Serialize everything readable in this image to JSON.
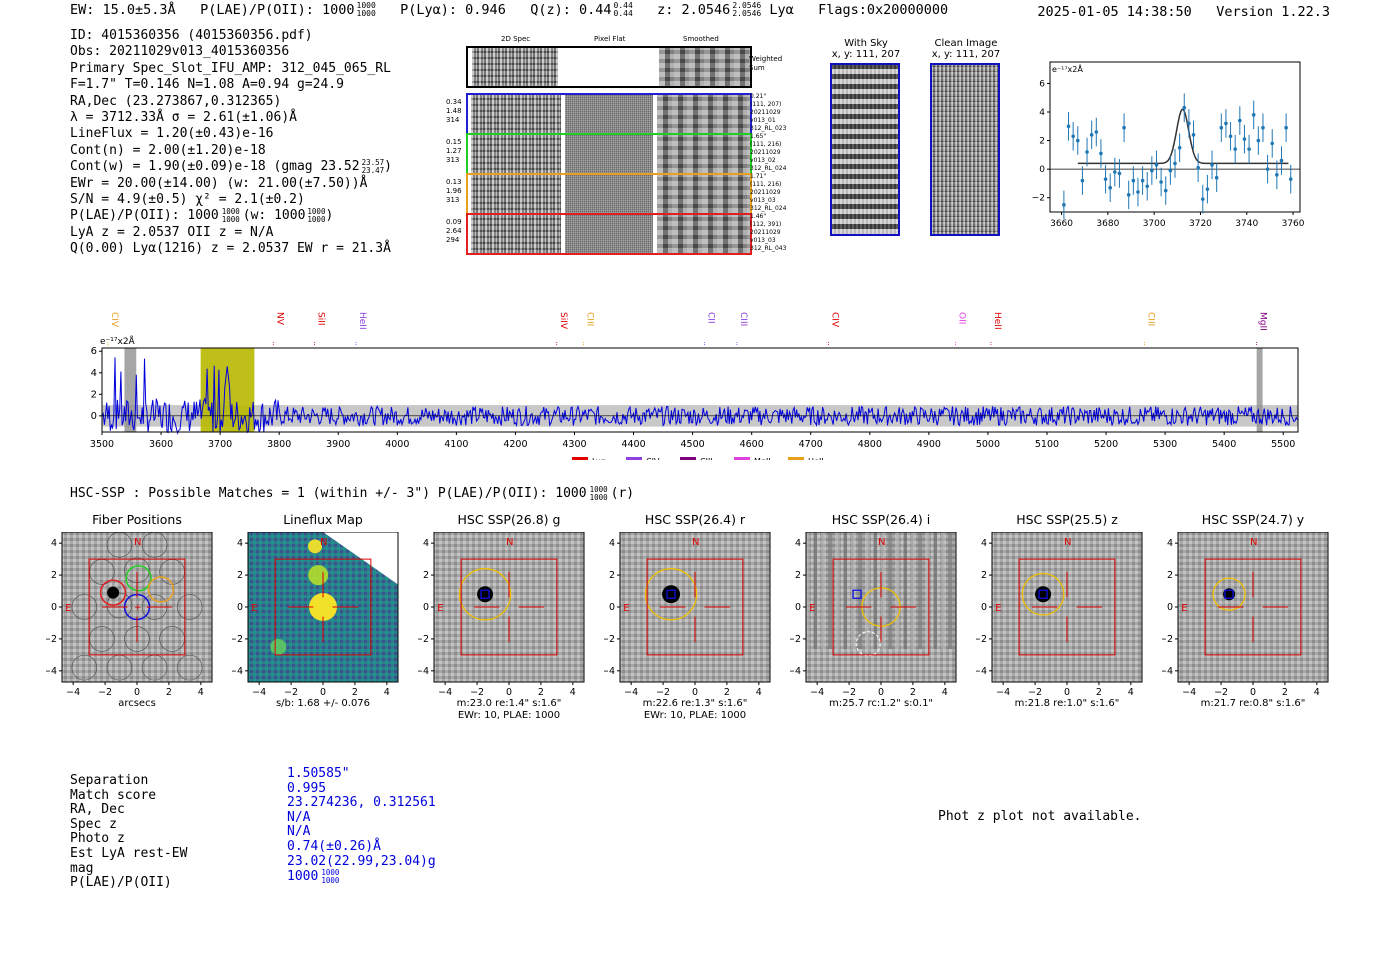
{
  "header": {
    "ew_label": "EW: 15.0±5.3Å",
    "plae_label": "P(LAE)/P(OII): 1000",
    "plae_hi": "1000",
    "plae_lo": "1000",
    "plya_label": "P(Lyα): 0.946",
    "qz_label": "Q(z): 0.44",
    "qz_hi": "0.44",
    "qz_lo": "0.44",
    "z_label": "z: 2.0546",
    "z_hi": "2.0546",
    "z_lo": "2.0546",
    "z_line": "Lyα",
    "flags": "Flags:0x20000000",
    "timestamp": "2025-01-05 14:38:50",
    "version": "Version 1.22.3"
  },
  "info": {
    "id": "ID: 4015360356 (4015360356.pdf)",
    "obs": "Obs: 20211029v013_4015360356",
    "primary": "Primary Spec_Slot_IFU_AMP: 312_045_065_RL",
    "fit": "F=1.7\"  T=0.146  N=1.08  A=0.94  g=24.9",
    "radec": "RA,Dec (23.273867,0.312365)",
    "lambda": "λ = 3712.33Å  σ = 2.61(±1.06)Å",
    "lineflux": "LineFlux = 1.20(±0.43)e-16",
    "contn": "Cont(n) = 2.00(±1.20)e-18",
    "contw": "Cont(w) = 1.90(±0.09)e-18 (gmag 23.52",
    "contw_hi": "23.57",
    "contw_lo": "23.47",
    "contw_end": ")",
    "ewr": "EWr = 20.00(±14.00) (w: 21.00(±7.50))Å",
    "sn": "S/N = 4.9(±0.5)  χ² = 2.1(±0.2)",
    "plae": "P(LAE)/P(OII): 1000",
    "plae_hi": "1000",
    "plae_lo": "1000",
    "plae_w": "(w: 1000",
    "plae_w_hi": "1000",
    "plae_w_lo": "1000",
    "plae_w_end": ")",
    "lyaz": "LyA z = 2.0537   OII z = N/A",
    "q": "Q(0.00) Lyα(1216) z = 2.0537  EW r = 21.3Å"
  },
  "fibers": {
    "col_2d": "2D Spec",
    "col_flat": "Pixel Flat",
    "col_smooth": "Smoothed",
    "weighted": "Weighted",
    "sum": "Sum",
    "rows": [
      {
        "left1": "0.34",
        "left2": "1.48",
        "left3": "314",
        "r1": "0.21\"",
        "r2": "(111, 207)",
        "r3": "20211029",
        "r4": "v013_01",
        "r5": "312_RL_023",
        "color": "#2020d0"
      },
      {
        "left1": "0.15",
        "left2": "1.27",
        "left3": "313",
        "r1": "1.65\"",
        "r2": "(111, 216)",
        "r3": "20211029",
        "r4": "v013_02",
        "r5": "312_RL_024",
        "color": "#22cc22"
      },
      {
        "left1": "0.13",
        "left2": "1.96",
        "left3": "313",
        "r1": "1.71\"",
        "r2": "(111, 216)",
        "r3": "20211029",
        "r4": "v013_03",
        "r5": "312_RL_024",
        "color": "#e8a020"
      },
      {
        "left1": "0.09",
        "left2": "2.64",
        "left3": "294",
        "r1": "1.46\"",
        "r2": "(112, 391)",
        "r3": "20211029",
        "r4": "v013_03",
        "r5": "312_RL_043",
        "color": "#e02020"
      }
    ]
  },
  "sky_panel": {
    "title": "With Sky",
    "coords": "x, y: 111, 207"
  },
  "clean_panel": {
    "title": "Clean Image",
    "coords": "x, y: 111, 207"
  },
  "zoom_units": "e⁻¹⁷x2Å",
  "full_units": "e⁻¹⁷x2Å",
  "hsc_header": "HSC-SSP : Possible Matches = 1 (within +/- 3\")  P(LAE)/P(OII): 1000",
  "hsc_header_hi": "1000",
  "hsc_header_lo": "1000",
  "hsc_header_end": "(r)",
  "cutouts": [
    {
      "title": "Fiber Positions",
      "cap1": "arcsecs",
      "cap2": ""
    },
    {
      "title": "Lineflux Map",
      "cap1": "s/b: 1.68 +/- 0.076",
      "cap2": ""
    },
    {
      "title": "HSC SSP(26.8) g",
      "cap1": "m:23.0  re:1.4\"  s:1.6\"",
      "cap2": "EWr: 10, PLAE: 1000"
    },
    {
      "title": "HSC SSP(26.4) r",
      "cap1": "m:22.6  re:1.3\"  s:1.6\"",
      "cap2": "EWr: 10, PLAE: 1000"
    },
    {
      "title": "HSC SSP(26.4) i",
      "cap1": "m:25.7 rc:1.2\"  s:0.1\"",
      "cap2": ""
    },
    {
      "title": "HSC SSP(25.5) z",
      "cap1": "m:21.8  re:1.0\"  s:1.6\"",
      "cap2": ""
    },
    {
      "title": "HSC SSP(24.7) y",
      "cap1": "m:21.7  re:0.8\"  s:1.6\"",
      "cap2": ""
    }
  ],
  "cutout_labels": {
    "north": "N",
    "east": "E"
  },
  "match": {
    "labels": [
      "Separation",
      "Match score",
      "RA, Dec",
      "Spec z",
      "Photo z",
      "Est LyA rest-EW",
      "mag",
      "P(LAE)/P(OII)"
    ],
    "values": [
      "1.50585\"",
      "0.995",
      "23.274236, 0.312561",
      "N/A",
      "N/A",
      "0.74(±0.26)Å",
      "23.02(22.99,23.04)g",
      "1000"
    ],
    "plae_hi": "1000",
    "plae_lo": "1000"
  },
  "photz_note": "Phot z plot not available.",
  "colors": {
    "blue": "#0000dd",
    "red": "#e00000",
    "yellow": "#b8b800",
    "gray": "#c8c8c8",
    "zoomline": "#1f77b4"
  },
  "chart_data": [
    {
      "type": "scatter",
      "title": "",
      "xlabel": "",
      "ylabel": "e⁻¹⁷x2Å",
      "xlim": [
        3655,
        3763
      ],
      "ylim": [
        -3,
        7.5
      ],
      "x_ticks": [
        3660,
        3680,
        3700,
        3720,
        3740,
        3760
      ],
      "y_ticks": [
        -2,
        0,
        2,
        4,
        6
      ],
      "x": [
        3661,
        3663,
        3665,
        3667,
        3669,
        3671,
        3673,
        3675,
        3677,
        3679,
        3681,
        3683,
        3685,
        3687,
        3689,
        3691,
        3693,
        3695,
        3697,
        3699,
        3701,
        3703,
        3705,
        3707,
        3709,
        3711,
        3713,
        3715,
        3717,
        3719,
        3721,
        3723,
        3725,
        3727,
        3729,
        3731,
        3733,
        3735,
        3737,
        3739,
        3741,
        3743,
        3745,
        3747,
        3749,
        3751,
        3753,
        3755,
        3757,
        3759
      ],
      "y": [
        -2.5,
        3.0,
        2.3,
        2.0,
        -0.8,
        1.2,
        2.4,
        2.6,
        1.1,
        -0.7,
        -1.3,
        -0.2,
        -0.3,
        2.9,
        -1.8,
        -0.8,
        -1.6,
        -0.8,
        -1.2,
        -0.1,
        0.3,
        -0.9,
        -1.5,
        -0.1,
        0.4,
        1.5,
        4.3,
        3.2,
        2.4,
        0.1,
        -2.1,
        -1.4,
        0.3,
        -0.6,
        2.9,
        3.2,
        2.3,
        1.4,
        3.4,
        2.1,
        1.4,
        3.8,
        2.0,
        2.9,
        0.0,
        1.8,
        -0.4,
        0.6,
        2.9,
        -0.7
      ],
      "errors": 1.0,
      "model": {
        "type": "gaussian",
        "center": 3712.3,
        "sigma": 2.61,
        "amplitude": 3.8,
        "continuum": 0.4,
        "x_range": [
          3667,
          3758
        ]
      }
    },
    {
      "type": "line",
      "title": "",
      "xlabel": "",
      "ylabel": "e⁻¹⁷x2Å",
      "xlim": [
        3500,
        5525
      ],
      "ylim": [
        -1.5,
        6.3
      ],
      "x_ticks": [
        3500,
        3600,
        3700,
        3800,
        3900,
        4000,
        4100,
        4200,
        4300,
        4400,
        4500,
        4600,
        4700,
        4800,
        4900,
        5000,
        5100,
        5200,
        5300,
        5400,
        5500
      ],
      "y_ticks": [
        0,
        2,
        4,
        6
      ],
      "series": [
        {
          "name": "spectrum",
          "color": "#0000dd",
          "noise_amplitude": 0.9,
          "peak": {
            "x": 3712,
            "y": 4.6
          }
        }
      ],
      "error_band": {
        "low": -1.0,
        "high": 1.0
      },
      "highlight_regions": [
        {
          "from": 3538,
          "to": 3558,
          "color": "gray"
        },
        {
          "from": 3667,
          "to": 3758,
          "color": "yellow"
        },
        {
          "from": 5455,
          "to": 5465,
          "color": "gray"
        }
      ],
      "line_markers": [
        {
          "label": "CIV",
          "x": 3510,
          "color": "#e8a020"
        },
        {
          "label": "NV",
          "x": 3790,
          "color": "#e00000"
        },
        {
          "label": "SiII",
          "x": 3860,
          "color": "#e00000"
        },
        {
          "label": "HeII",
          "x": 3930,
          "color": "#9040e0"
        },
        {
          "label": "SiIV",
          "x": 4270,
          "color": "#e00000"
        },
        {
          "label": "CIII",
          "x": 4315,
          "color": "#e8a020"
        },
        {
          "label": "CII",
          "x": 4520,
          "color": "#9040e0"
        },
        {
          "label": "CIII",
          "x": 4575,
          "color": "#9040e0"
        },
        {
          "label": "CIV",
          "x": 4730,
          "color": "#e00000"
        },
        {
          "label": "OII",
          "x": 4945,
          "color": "#e040e0"
        },
        {
          "label": "HeII",
          "x": 5005,
          "color": "#e00000"
        },
        {
          "label": "CIII",
          "x": 5265,
          "color": "#e8a020"
        },
        {
          "label": "MgII",
          "x": 5455,
          "color": "#800080"
        }
      ],
      "legend": [
        {
          "label": "Lyα",
          "color": "#e00000"
        },
        {
          "label": "CIV",
          "color": "#9040e0"
        },
        {
          "label": "CIII",
          "color": "#800080"
        },
        {
          "label": "MgII",
          "color": "#e040e0"
        },
        {
          "label": "HeII",
          "color": "#e8a020"
        }
      ]
    }
  ]
}
